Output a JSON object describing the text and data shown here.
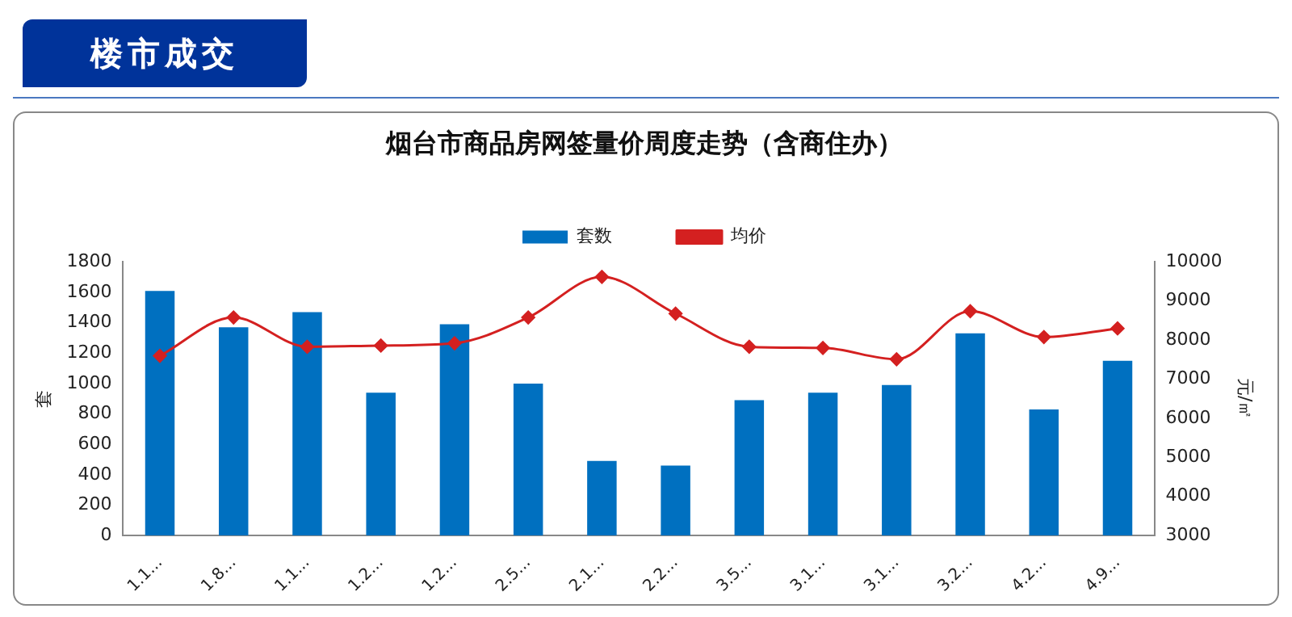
{
  "chart_data": {
    "type": "bar",
    "title": "烟台市商品房网签量价周度走势（含商住办）",
    "subtitle": "楼市成交",
    "ylabel": "套",
    "y2label": "元/㎡",
    "categories": [
      "1.1...",
      "1.8...",
      "1.1...",
      "1.2...",
      "1.2...",
      "2.5...",
      "2.1...",
      "2.2...",
      "3.5...",
      "3.1...",
      "3.1...",
      "3.2...",
      "4.2...",
      "4.9..."
    ],
    "series": [
      {
        "name": "套数",
        "color": "#0070c0",
        "values": [
          1610,
          1370,
          1470,
          940,
          1390,
          1000,
          490,
          460,
          890,
          940,
          990,
          1330,
          830,
          1150
        ]
      },
      {
        "name": "均价",
        "type": "line",
        "axis": "y2",
        "color": "#d42020",
        "marker": "diamond",
        "values": [
          7600,
          8580,
          7830,
          7860,
          7920,
          8580,
          9620,
          8680,
          7830,
          7800,
          7510,
          8740,
          8080,
          8300
        ]
      }
    ],
    "ylim": [
      0,
      1800
    ],
    "yticks": [
      0,
      200,
      400,
      600,
      800,
      1000,
      1200,
      1400,
      1600,
      1800
    ],
    "y2lim": [
      3000,
      10000
    ],
    "y2ticks": [
      3000,
      4000,
      5000,
      6000,
      7000,
      8000,
      9000,
      10000
    ],
    "grid": false,
    "legend": "top"
  }
}
